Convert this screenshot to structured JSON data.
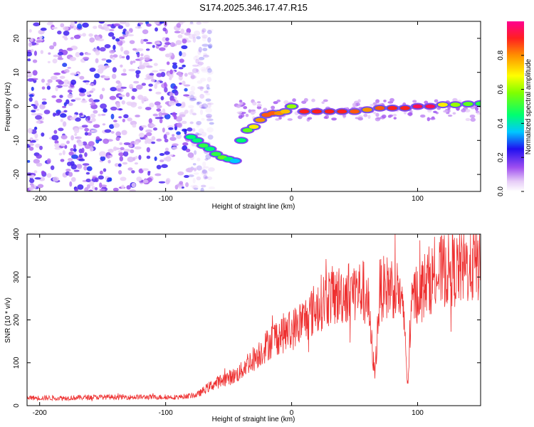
{
  "title": "S174.2025.346.17.47.R15",
  "chart_data": [
    {
      "type": "heatmap",
      "title": "S174.2025.346.17.47.R15",
      "xlabel": "Height of straight line (km)",
      "ylabel": "Frequency (Hz)",
      "xlim": [
        -210,
        150
      ],
      "ylim": [
        -25,
        25
      ],
      "xticks": [
        -200,
        -100,
        0,
        100
      ],
      "yticks": [
        -20,
        -10,
        0,
        10,
        20
      ],
      "colorbar": {
        "label": "Normalized spectral amplitude",
        "range": [
          0.0,
          1.0
        ],
        "ticks": [
          0.0,
          0.2,
          0.4,
          0.6,
          0.8
        ]
      },
      "ridge": {
        "description": "Dominant spectral peak frequency vs height",
        "x": [
          -80,
          -75,
          -70,
          -65,
          -60,
          -55,
          -50,
          -45,
          -40,
          -35,
          -30,
          -25,
          -20,
          -15,
          -10,
          -5,
          0,
          10,
          20,
          30,
          40,
          50,
          60,
          70,
          80,
          90,
          100,
          110,
          120,
          130,
          140,
          150
        ],
        "y": [
          -9,
          -10,
          -11.5,
          -12.5,
          -14,
          -15,
          -15.5,
          -16,
          -10,
          -7,
          -6,
          -4,
          -2.5,
          -2,
          -2,
          -1.5,
          0,
          -1.5,
          -1.5,
          -1.5,
          -1.5,
          -1.5,
          -1,
          -0.5,
          -0.5,
          -0.5,
          0,
          0,
          0.5,
          0.5,
          0.7,
          0.8
        ],
        "amplitude": [
          0.45,
          0.45,
          0.5,
          0.45,
          0.5,
          0.55,
          0.45,
          0.35,
          0.45,
          0.55,
          0.7,
          0.8,
          0.85,
          0.85,
          0.8,
          0.75,
          0.6,
          0.9,
          0.9,
          0.9,
          0.9,
          0.85,
          0.8,
          0.85,
          0.9,
          0.9,
          0.95,
          0.95,
          0.7,
          0.6,
          0.55,
          0.5
        ]
      },
      "noise_region": {
        "x_range": [
          -210,
          -80
        ],
        "description": "Scattered low-amplitude noise speckles"
      }
    },
    {
      "type": "line",
      "xlabel": "Height of straight line (km)",
      "ylabel": "SNR (10 * v/v)",
      "xlim": [
        -210,
        150
      ],
      "ylim": [
        0,
        400
      ],
      "xticks": [
        -200,
        -100,
        0,
        100
      ],
      "yticks": [
        0,
        100,
        200,
        300,
        400
      ],
      "series": [
        {
          "name": "SNR",
          "color": "#ee3030",
          "x": [
            -210,
            -180,
            -150,
            -120,
            -90,
            -75,
            -65,
            -55,
            -45,
            -40,
            -35,
            -30,
            -25,
            -20,
            -15,
            -10,
            -5,
            0,
            5,
            10,
            15,
            20,
            25,
            30,
            35,
            40,
            45,
            50,
            55,
            60,
            63,
            66,
            70,
            75,
            80,
            85,
            90,
            92,
            94,
            96,
            100,
            105,
            110,
            115,
            120,
            125,
            130,
            135,
            140,
            145,
            150
          ],
          "y": [
            18,
            18,
            20,
            20,
            20,
            25,
            45,
            60,
            70,
            80,
            100,
            110,
            125,
            140,
            155,
            165,
            170,
            175,
            190,
            200,
            215,
            230,
            245,
            255,
            255,
            260,
            265,
            270,
            268,
            265,
            160,
            70,
            270,
            275,
            280,
            270,
            180,
            40,
            160,
            250,
            265,
            280,
            295,
            300,
            315,
            320,
            315,
            320,
            325,
            330,
            335
          ]
        }
      ]
    }
  ]
}
